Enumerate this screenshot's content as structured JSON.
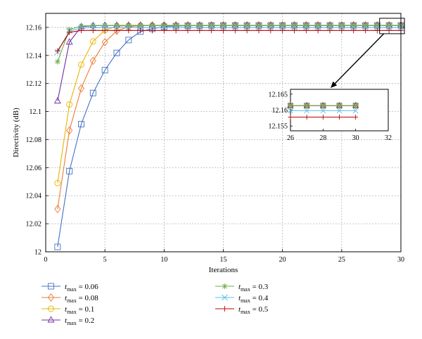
{
  "chart_data": {
    "type": "line",
    "xlabel": "Iterations",
    "ylabel": "Directivity (dB)",
    "xlim": [
      0,
      30
    ],
    "ylim": [
      12,
      12.17
    ],
    "xticks": [
      0,
      5,
      10,
      15,
      20,
      25,
      30
    ],
    "yticks": [
      12,
      12.02,
      12.04,
      12.06,
      12.08,
      12.1,
      12.12,
      12.14,
      12.16
    ],
    "ytick_labels": [
      "12",
      "12.02",
      "12.04",
      "12.06",
      "12.08",
      "12.1",
      "12.12",
      "12.14",
      "12.16"
    ],
    "grid": true,
    "legend_position": "bottom",
    "x": [
      1,
      2,
      3,
      4,
      5,
      6,
      7,
      8,
      9,
      10,
      11,
      12,
      13,
      14,
      15,
      16,
      17,
      18,
      19,
      20,
      21,
      22,
      23,
      24,
      25,
      26,
      27,
      28,
      29,
      30
    ],
    "series": [
      {
        "name_base": "t",
        "name_sub": "max",
        "name_value": " = 0.06",
        "color": "#4472C4",
        "marker": "square",
        "values": [
          12.0035,
          12.0575,
          12.091,
          12.1132,
          12.1295,
          12.1418,
          12.151,
          12.157,
          12.159,
          12.1605,
          12.161,
          12.1612,
          12.1613,
          12.1614,
          12.1614,
          12.1614,
          12.1614,
          12.1614,
          12.1614,
          12.1614,
          12.1614,
          12.1614,
          12.1614,
          12.1614,
          12.1614,
          12.1614,
          12.1614,
          12.1614,
          12.1614,
          12.1614
        ]
      },
      {
        "name_base": "t",
        "name_sub": "max",
        "name_value": " = 0.08",
        "color": "#ED7D31",
        "marker": "diamond",
        "values": [
          12.0305,
          12.0865,
          12.1165,
          12.1362,
          12.1495,
          12.1575,
          12.1605,
          12.1612,
          12.1613,
          12.1614,
          12.1614,
          12.1614,
          12.1614,
          12.1614,
          12.1614,
          12.1614,
          12.1614,
          12.1614,
          12.1614,
          12.1614,
          12.1614,
          12.1614,
          12.1614,
          12.1614,
          12.1614,
          12.1614,
          12.1614,
          12.1614,
          12.1614,
          12.1614
        ]
      },
      {
        "name_base": "t",
        "name_sub": "max",
        "name_value": " = 0.1",
        "color": "#E8B400",
        "marker": "circle",
        "values": [
          12.049,
          12.105,
          12.1335,
          12.15,
          12.158,
          12.1608,
          12.1612,
          12.1613,
          12.1614,
          12.1614,
          12.1614,
          12.1614,
          12.1614,
          12.1614,
          12.1614,
          12.1614,
          12.1614,
          12.1614,
          12.1614,
          12.1614,
          12.1614,
          12.1614,
          12.1614,
          12.1614,
          12.1614,
          12.1614,
          12.1614,
          12.1614,
          12.1614,
          12.1614
        ]
      },
      {
        "name_base": "t",
        "name_sub": "max",
        "name_value": " = 0.2",
        "color": "#7030A0",
        "marker": "triangle",
        "values": [
          12.1075,
          12.1495,
          12.1605,
          12.1612,
          12.1614,
          12.1614,
          12.1614,
          12.1614,
          12.1614,
          12.1614,
          12.1614,
          12.1614,
          12.1614,
          12.1614,
          12.1614,
          12.1614,
          12.1614,
          12.1614,
          12.1614,
          12.1614,
          12.1614,
          12.1614,
          12.1614,
          12.1614,
          12.1614,
          12.1614,
          12.1614,
          12.1614,
          12.1614,
          12.1614
        ]
      },
      {
        "name_base": "t",
        "name_sub": "max",
        "name_value": " = 0.3",
        "color": "#70AD47",
        "marker": "asterisk",
        "values": [
          12.1355,
          12.1585,
          12.161,
          12.1613,
          12.1614,
          12.1614,
          12.1614,
          12.1614,
          12.1614,
          12.1614,
          12.1614,
          12.1614,
          12.1614,
          12.1614,
          12.1614,
          12.1614,
          12.1614,
          12.1614,
          12.1614,
          12.1614,
          12.1614,
          12.1614,
          12.1614,
          12.1614,
          12.1614,
          12.1614,
          12.1614,
          12.1614,
          12.1614,
          12.1614
        ]
      },
      {
        "name_base": "t",
        "name_sub": "max",
        "name_value": " = 0.4",
        "color": "#5BC0EB",
        "marker": "x",
        "values": [
          12.1425,
          12.1575,
          12.1595,
          12.1598,
          12.1598,
          12.1598,
          12.1598,
          12.1598,
          12.1598,
          12.1598,
          12.1598,
          12.1598,
          12.1598,
          12.1598,
          12.1598,
          12.1598,
          12.1598,
          12.1598,
          12.1598,
          12.1598,
          12.1598,
          12.1598,
          12.1598,
          12.1598,
          12.1598,
          12.1598,
          12.1598,
          12.1598,
          12.1598,
          12.1598
        ]
      },
      {
        "name_base": "t",
        "name_sub": "max",
        "name_value": " = 0.5",
        "color": "#C00000",
        "marker": "plus",
        "values": [
          12.1432,
          12.1565,
          12.1578,
          12.1578,
          12.1578,
          12.1578,
          12.1578,
          12.1578,
          12.1578,
          12.1578,
          12.1578,
          12.1578,
          12.1578,
          12.1578,
          12.1578,
          12.1578,
          12.1578,
          12.1578,
          12.1578,
          12.1578,
          12.1578,
          12.1578,
          12.1578,
          12.1578,
          12.1578,
          12.1578,
          12.1578,
          12.1578,
          12.1578,
          12.1578
        ]
      }
    ],
    "inset": {
      "xlim": [
        26,
        32
      ],
      "ylim": [
        12.1535,
        12.1665
      ],
      "xticks": [
        26,
        28,
        30,
        32
      ],
      "yticks": [
        12.155,
        12.16,
        12.165
      ],
      "ytick_labels": [
        "12.155",
        "12.16",
        "12.165"
      ],
      "x_range": [
        26,
        30
      ]
    },
    "zoom_box": {
      "x": [
        28.2,
        30.3
      ],
      "y": [
        12.1555,
        12.1665
      ]
    }
  }
}
